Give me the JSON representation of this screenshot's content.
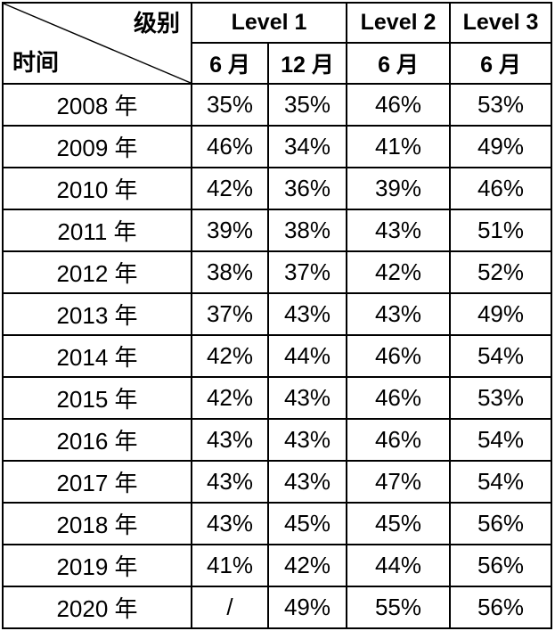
{
  "table": {
    "corner": {
      "level_label": "级别",
      "time_label": "时间"
    },
    "level_headers": [
      {
        "label": "Level 1",
        "colspan": 2
      },
      {
        "label": "Level 2",
        "colspan": 1
      },
      {
        "label": "Level 3",
        "colspan": 1
      }
    ],
    "month_headers": [
      "6 月",
      "12 月",
      "6 月",
      "6 月"
    ],
    "rows": [
      {
        "year": "2008 年",
        "values": [
          "35%",
          "35%",
          "46%",
          "53%"
        ]
      },
      {
        "year": "2009 年",
        "values": [
          "46%",
          "34%",
          "41%",
          "49%"
        ]
      },
      {
        "year": "2010 年",
        "values": [
          "42%",
          "36%",
          "39%",
          "46%"
        ]
      },
      {
        "year": "2011 年",
        "values": [
          "39%",
          "38%",
          "43%",
          "51%"
        ]
      },
      {
        "year": "2012 年",
        "values": [
          "38%",
          "37%",
          "42%",
          "52%"
        ]
      },
      {
        "year": "2013 年",
        "values": [
          "37%",
          "43%",
          "43%",
          "49%"
        ]
      },
      {
        "year": "2014 年",
        "values": [
          "42%",
          "44%",
          "46%",
          "54%"
        ]
      },
      {
        "year": "2015 年",
        "values": [
          "42%",
          "43%",
          "46%",
          "53%"
        ]
      },
      {
        "year": "2016 年",
        "values": [
          "43%",
          "43%",
          "46%",
          "54%"
        ]
      },
      {
        "year": "2017 年",
        "values": [
          "43%",
          "43%",
          "47%",
          "54%"
        ]
      },
      {
        "year": "2018 年",
        "values": [
          "43%",
          "45%",
          "45%",
          "56%"
        ]
      },
      {
        "year": "2019 年",
        "values": [
          "41%",
          "42%",
          "44%",
          "56%"
        ]
      },
      {
        "year": "2020 年",
        "values": [
          "/",
          "49%",
          "55%",
          "56%"
        ]
      }
    ],
    "colors": {
      "border": "#000000",
      "text": "#000000",
      "background": "#ffffff"
    }
  },
  "chart_data": {
    "type": "table",
    "title": "",
    "corner_top_label": "级别",
    "corner_bottom_label": "时间",
    "column_groups": [
      {
        "name": "Level 1",
        "columns": [
          "6 月",
          "12 月"
        ]
      },
      {
        "name": "Level 2",
        "columns": [
          "6 月"
        ]
      },
      {
        "name": "Level 3",
        "columns": [
          "6 月"
        ]
      }
    ],
    "columns": [
      "Level 1 6月",
      "Level 1 12月",
      "Level 2 6月",
      "Level 3 6月"
    ],
    "row_labels": [
      "2008 年",
      "2009 年",
      "2010 年",
      "2011 年",
      "2012 年",
      "2013 年",
      "2014 年",
      "2015 年",
      "2016 年",
      "2017 年",
      "2018 年",
      "2019 年",
      "2020 年"
    ],
    "values_percent": [
      [
        35,
        35,
        46,
        53
      ],
      [
        46,
        34,
        41,
        49
      ],
      [
        42,
        36,
        39,
        46
      ],
      [
        39,
        38,
        43,
        51
      ],
      [
        38,
        37,
        42,
        52
      ],
      [
        37,
        43,
        43,
        49
      ],
      [
        42,
        44,
        46,
        54
      ],
      [
        42,
        43,
        46,
        53
      ],
      [
        43,
        43,
        46,
        54
      ],
      [
        43,
        43,
        47,
        54
      ],
      [
        43,
        45,
        45,
        56
      ],
      [
        41,
        42,
        44,
        56
      ],
      [
        null,
        49,
        55,
        56
      ]
    ],
    "missing_value_symbol": "/",
    "grid": true,
    "legend_position": "none"
  }
}
